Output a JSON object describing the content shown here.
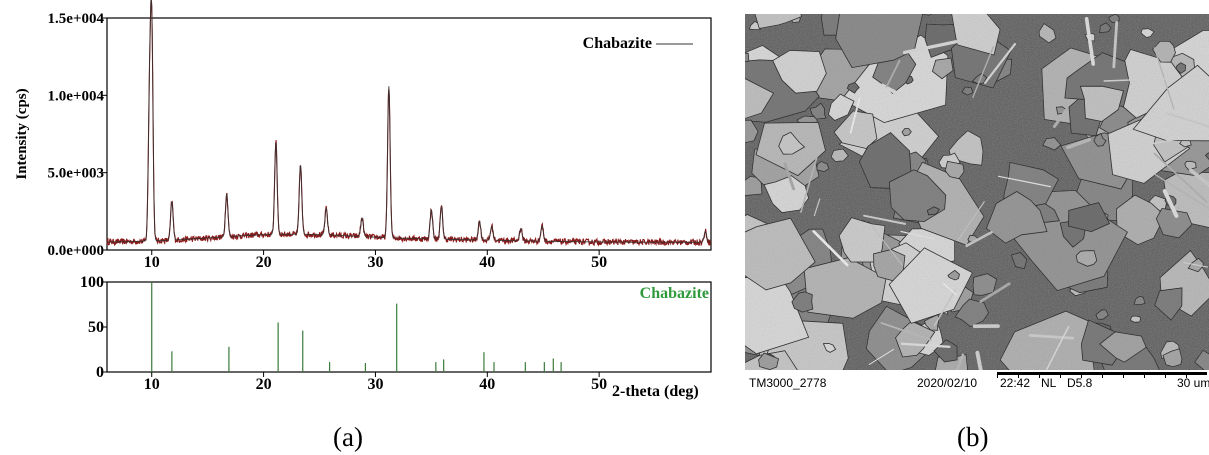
{
  "panel_a_label": "(a)",
  "panel_b_label": "(b)",
  "chart_data": [
    {
      "type": "line",
      "title": "",
      "legend": "Chabazite",
      "legend_placement": "top-right",
      "xlabel": "",
      "ylabel": "Intensity (cps)",
      "xlim": [
        6,
        60
      ],
      "ylim": [
        0,
        15000
      ],
      "x_ticks": [
        10,
        20,
        30,
        40,
        50
      ],
      "y_ticks": [
        0,
        5000,
        10000,
        15000
      ],
      "y_tick_labels": [
        "0.0e+000",
        "5.0e+003",
        "1.0e+004",
        "1.5e+004"
      ],
      "baseline": 500,
      "peaks": [
        {
          "x": 9.8,
          "y": 9000
        },
        {
          "x": 10.0,
          "y": 14000
        },
        {
          "x": 11.8,
          "y": 3000
        },
        {
          "x": 16.7,
          "y": 3300
        },
        {
          "x": 21.1,
          "y": 6500
        },
        {
          "x": 23.3,
          "y": 5000
        },
        {
          "x": 25.6,
          "y": 2200
        },
        {
          "x": 28.8,
          "y": 1700
        },
        {
          "x": 31.2,
          "y": 10300
        },
        {
          "x": 35.0,
          "y": 2400
        },
        {
          "x": 35.9,
          "y": 2600
        },
        {
          "x": 39.3,
          "y": 1700
        },
        {
          "x": 40.4,
          "y": 1400
        },
        {
          "x": 43.0,
          "y": 1300
        },
        {
          "x": 44.9,
          "y": 1500
        },
        {
          "x": 59.5,
          "y": 1200
        }
      ],
      "color": "#8b1a1a",
      "fit_color": "#333333"
    },
    {
      "type": "bar",
      "title": "",
      "legend": "Chabazite",
      "legend_color": "#2e9a3a",
      "xlabel": "2-theta (deg)",
      "ylabel": "",
      "xlim": [
        6,
        60
      ],
      "ylim": [
        0,
        100
      ],
      "x_ticks": [
        10,
        20,
        30,
        40,
        50
      ],
      "y_ticks": [
        0,
        50,
        100
      ],
      "bar_color": "#3a7a3a",
      "sticks": [
        {
          "x": 10.0,
          "y": 100
        },
        {
          "x": 11.8,
          "y": 23
        },
        {
          "x": 16.9,
          "y": 28
        },
        {
          "x": 21.3,
          "y": 55
        },
        {
          "x": 23.5,
          "y": 46
        },
        {
          "x": 25.9,
          "y": 11
        },
        {
          "x": 29.1,
          "y": 10
        },
        {
          "x": 31.9,
          "y": 76
        },
        {
          "x": 35.4,
          "y": 11
        },
        {
          "x": 36.1,
          "y": 14
        },
        {
          "x": 39.7,
          "y": 22
        },
        {
          "x": 40.6,
          "y": 11
        },
        {
          "x": 43.4,
          "y": 11
        },
        {
          "x": 45.1,
          "y": 11
        },
        {
          "x": 45.9,
          "y": 15
        },
        {
          "x": 46.6,
          "y": 11
        }
      ]
    }
  ],
  "sem": {
    "id_label": "TM3000_2778",
    "date": "2020/02/10",
    "time": "22:42",
    "mode": "NL",
    "wd": "D5.8",
    "scale_label": "30 um"
  }
}
